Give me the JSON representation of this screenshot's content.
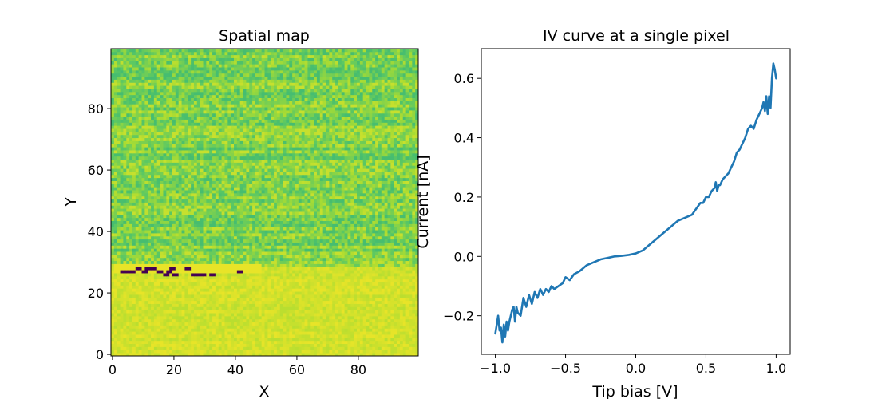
{
  "chart_data": [
    {
      "type": "heatmap",
      "title": "Spatial map",
      "xlabel": "X",
      "ylabel": "Y",
      "xlim": [
        -0.5,
        99.5
      ],
      "ylim": [
        -0.5,
        99.5
      ],
      "grid_size": [
        100,
        100
      ],
      "colormap": "viridis",
      "x_ticks": [
        0,
        20,
        40,
        60,
        80
      ],
      "y_ticks": [
        0,
        20,
        40,
        60,
        80
      ],
      "x_tick_labels": [
        "0",
        "20",
        "40",
        "60",
        "80"
      ],
      "y_tick_labels": [
        "0",
        "20",
        "40",
        "60",
        "80"
      ],
      "regions": [
        {
          "rows": [
            0,
            28
          ],
          "cols": [
            0,
            99
          ],
          "value_range": [
            0.9,
            0.97
          ]
        },
        {
          "rows": [
            29,
            99
          ],
          "cols": [
            0,
            99
          ],
          "value_range": [
            0.7,
            0.92
          ]
        }
      ],
      "uniform_patches": [
        {
          "rows": [
            27,
            29
          ],
          "cols": [
            1,
            48
          ],
          "value": 0.97
        }
      ],
      "low_value_pixels": [
        {
          "row": 27,
          "cols": [
            3,
            7
          ],
          "value": 0.0
        },
        {
          "row": 28,
          "cols": [
            8,
            9
          ],
          "value": 0.0
        },
        {
          "row": 27,
          "cols": [
            10,
            11
          ],
          "value": 0.0
        },
        {
          "row": 28,
          "cols": [
            11,
            14
          ],
          "value": 0.0
        },
        {
          "row": 27,
          "cols": [
            15,
            16
          ],
          "value": 0.0
        },
        {
          "row": 26,
          "cols": [
            17,
            18
          ],
          "value": 0.0
        },
        {
          "row": 27,
          "cols": [
            18,
            19
          ],
          "value": 0.0
        },
        {
          "row": 28,
          "cols": [
            19,
            20
          ],
          "value": 0.0
        },
        {
          "row": 26,
          "cols": [
            20,
            21
          ],
          "value": 0.0
        },
        {
          "row": 28,
          "cols": [
            24,
            25
          ],
          "value": 0.0
        },
        {
          "row": 26,
          "cols": [
            26,
            30
          ],
          "value": 0.0
        },
        {
          "row": 26,
          "cols": [
            32,
            33
          ],
          "value": 0.0
        },
        {
          "row": 27,
          "cols": [
            41,
            42
          ],
          "value": 0.0
        }
      ]
    },
    {
      "type": "line",
      "title": "IV curve at a single pixel",
      "xlabel": "Tip bias [V]",
      "ylabel": "Current [nA]",
      "xlim": [
        -1.1,
        1.1
      ],
      "ylim": [
        -0.33,
        0.7
      ],
      "x_ticks": [
        -1.0,
        -0.5,
        0.0,
        0.5,
        1.0
      ],
      "x_tick_labels": [
        "−1.0",
        "−0.5",
        "0.0",
        "0.5",
        "1.0"
      ],
      "y_ticks": [
        -0.2,
        0.0,
        0.2,
        0.4,
        0.6
      ],
      "y_tick_labels": [
        "−0.2",
        "0.0",
        "0.2",
        "0.4",
        "0.6"
      ],
      "color": "#1f77b4",
      "series": [
        {
          "x": [
            -1.0,
            -0.98,
            -0.97,
            -0.96,
            -0.95,
            -0.94,
            -0.93,
            -0.92,
            -0.91,
            -0.9,
            -0.88,
            -0.87,
            -0.86,
            -0.85,
            -0.84,
            -0.82,
            -0.8,
            -0.78,
            -0.76,
            -0.74,
            -0.72,
            -0.7,
            -0.68,
            -0.66,
            -0.64,
            -0.62,
            -0.6,
            -0.58,
            -0.55,
            -0.52,
            -0.5,
            -0.47,
            -0.44,
            -0.4,
            -0.35,
            -0.3,
            -0.25,
            -0.2,
            -0.15,
            -0.1,
            -0.05,
            0.0,
            0.05,
            0.1,
            0.15,
            0.2,
            0.25,
            0.3,
            0.35,
            0.4,
            0.43,
            0.46,
            0.48,
            0.5,
            0.52,
            0.54,
            0.56,
            0.57,
            0.58,
            0.59,
            0.6,
            0.62,
            0.64,
            0.66,
            0.68,
            0.7,
            0.72,
            0.74,
            0.76,
            0.78,
            0.8,
            0.82,
            0.84,
            0.86,
            0.88,
            0.9,
            0.91,
            0.92,
            0.93,
            0.94,
            0.95,
            0.96,
            0.97,
            0.98,
            0.99,
            1.0
          ],
          "y": [
            -0.26,
            -0.2,
            -0.25,
            -0.24,
            -0.29,
            -0.23,
            -0.27,
            -0.22,
            -0.25,
            -0.22,
            -0.18,
            -0.17,
            -0.22,
            -0.17,
            -0.19,
            -0.2,
            -0.14,
            -0.17,
            -0.13,
            -0.16,
            -0.12,
            -0.14,
            -0.11,
            -0.13,
            -0.11,
            -0.12,
            -0.1,
            -0.11,
            -0.1,
            -0.09,
            -0.07,
            -0.08,
            -0.06,
            -0.05,
            -0.03,
            -0.02,
            -0.01,
            -0.005,
            0.0,
            0.002,
            0.005,
            0.01,
            0.02,
            0.04,
            0.06,
            0.08,
            0.1,
            0.12,
            0.13,
            0.14,
            0.16,
            0.18,
            0.18,
            0.2,
            0.2,
            0.22,
            0.23,
            0.25,
            0.22,
            0.24,
            0.24,
            0.26,
            0.27,
            0.28,
            0.3,
            0.32,
            0.35,
            0.36,
            0.38,
            0.4,
            0.43,
            0.44,
            0.43,
            0.46,
            0.48,
            0.5,
            0.52,
            0.49,
            0.54,
            0.48,
            0.54,
            0.5,
            0.6,
            0.65,
            0.63,
            0.6
          ]
        }
      ]
    }
  ]
}
